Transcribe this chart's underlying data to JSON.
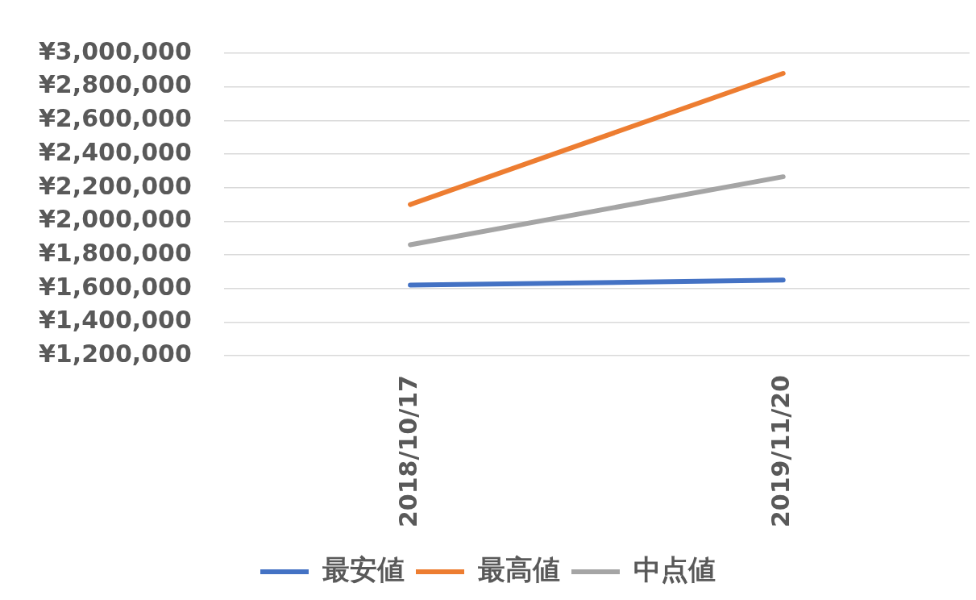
{
  "chart_data": {
    "type": "line",
    "categories": [
      "2018/10/17",
      "2019/11/20"
    ],
    "series": [
      {
        "name": "最安値",
        "color": "#4472c4",
        "values": [
          1620000,
          1650000
        ]
      },
      {
        "name": "最高値",
        "color": "#ed7d31",
        "values": [
          2100000,
          2880000
        ]
      },
      {
        "name": "中点値",
        "color": "#a5a5a5",
        "values": [
          1860000,
          2265000
        ]
      }
    ],
    "ylim": [
      1200000,
      3000000
    ],
    "yticks": [
      {
        "value": 1200000,
        "label": "¥1,200,000"
      },
      {
        "value": 1400000,
        "label": "¥1,400,000"
      },
      {
        "value": 1600000,
        "label": "¥1,600,000"
      },
      {
        "value": 1800000,
        "label": "¥1,800,000"
      },
      {
        "value": 2000000,
        "label": "¥2,000,000"
      },
      {
        "value": 2200000,
        "label": "¥2,200,000"
      },
      {
        "value": 2400000,
        "label": "¥2,400,000"
      },
      {
        "value": 2600000,
        "label": "¥2,600,000"
      },
      {
        "value": 2800000,
        "label": "¥2,800,000"
      },
      {
        "value": 3000000,
        "label": "¥3,000,000"
      }
    ],
    "grid": "y",
    "legend": "bottom",
    "marker": "none",
    "line_style": "solid"
  }
}
